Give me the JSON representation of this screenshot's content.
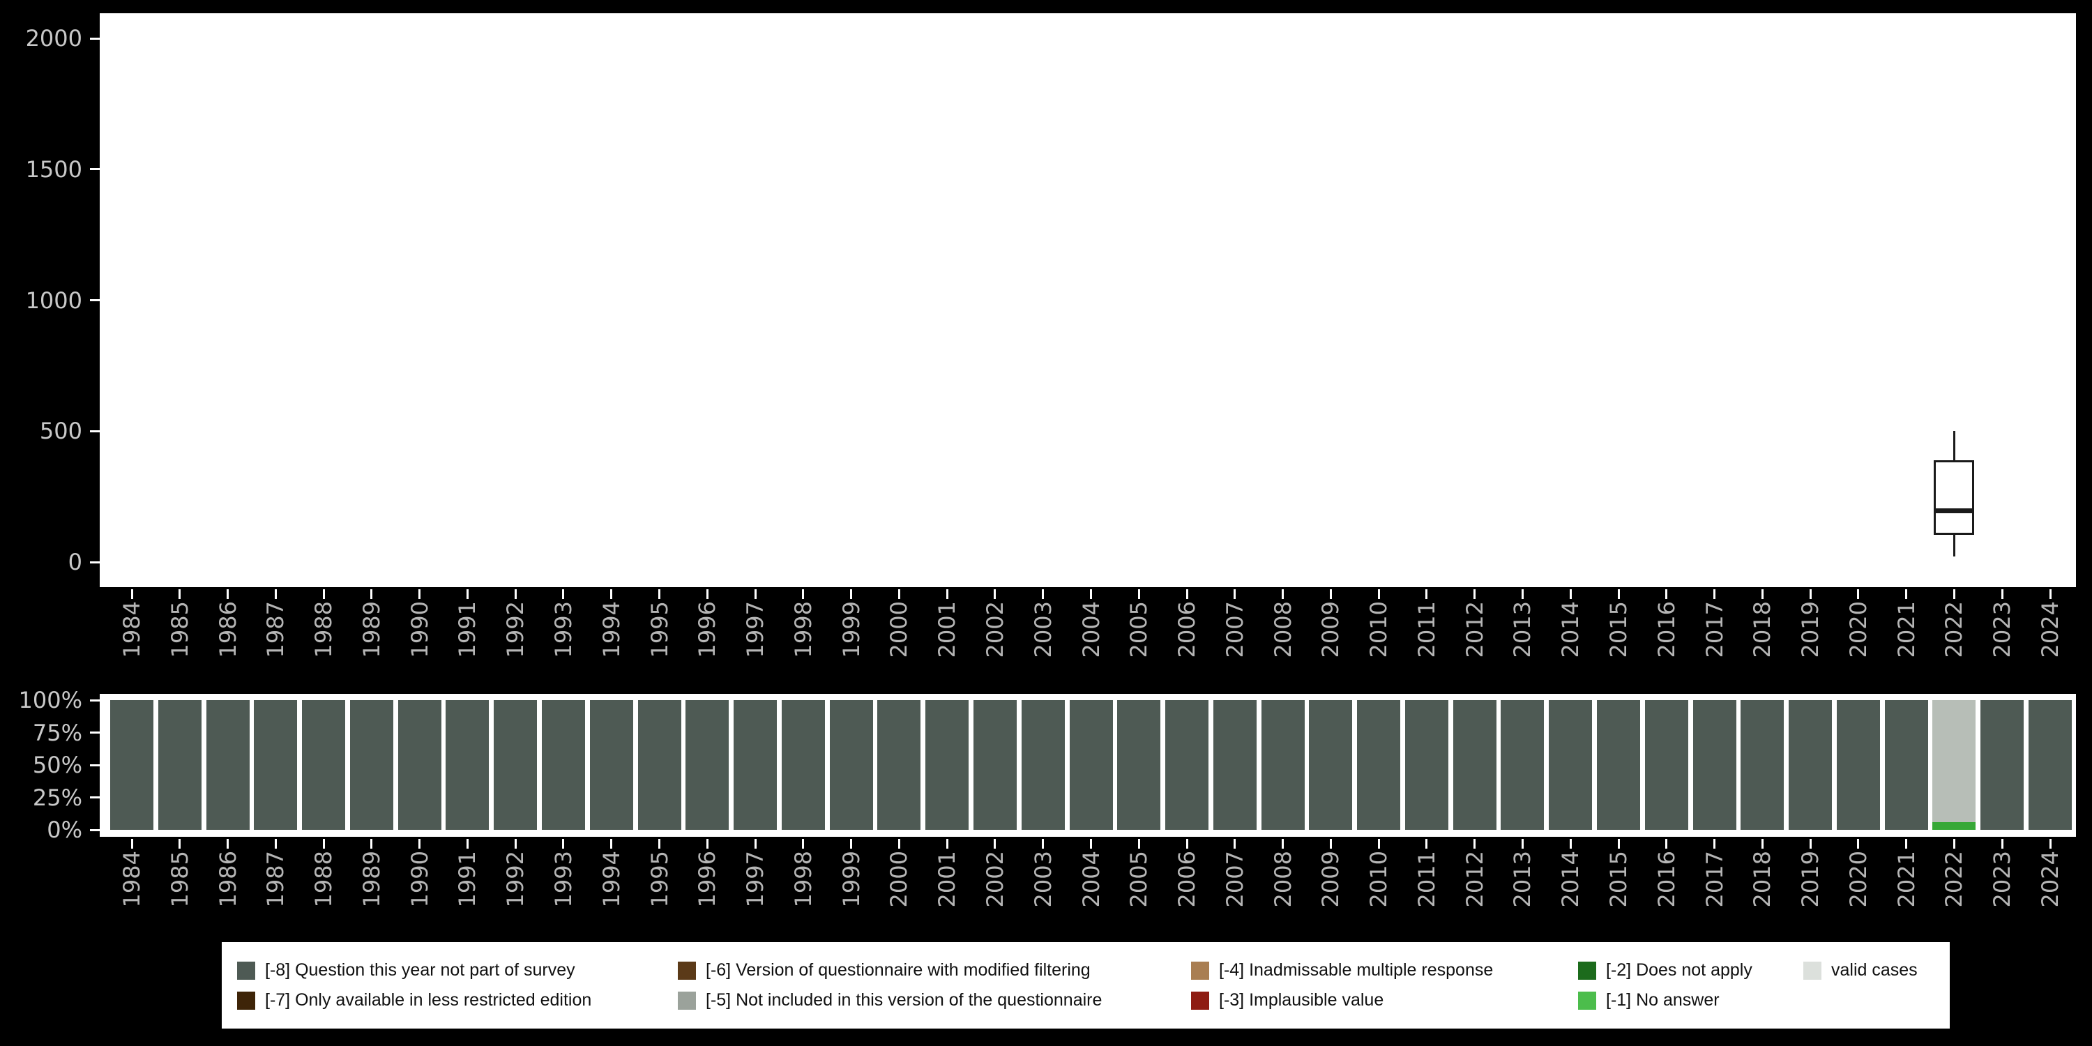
{
  "colors": {
    "background": "#000000",
    "panel": "#ffffff",
    "tick": "#ffffff",
    "y_axis_text": "#c8c8c8",
    "x_axis_text": "#b5b5b5",
    "legend_text": "#111111",
    "boxplot_stroke": "#1a1a1a"
  },
  "years": [
    "1984",
    "1985",
    "1986",
    "1987",
    "1988",
    "1989",
    "1990",
    "1991",
    "1992",
    "1993",
    "1994",
    "1995",
    "1996",
    "1997",
    "1998",
    "1999",
    "2000",
    "2001",
    "2002",
    "2003",
    "2004",
    "2005",
    "2006",
    "2007",
    "2008",
    "2009",
    "2010",
    "2011",
    "2012",
    "2013",
    "2014",
    "2015",
    "2016",
    "2017",
    "2018",
    "2019",
    "2020",
    "2021",
    "2022",
    "2023",
    "2024"
  ],
  "chart_data": [
    {
      "type": "boxplot",
      "panel": "top",
      "title": "",
      "xlabel": "",
      "ylabel": "",
      "ylim": [
        0,
        2000
      ],
      "y_ticks": [
        0,
        500,
        1000,
        1500,
        2000
      ],
      "x_categories_ref": "years",
      "boxes": [
        {
          "year": "2022",
          "min": 20,
          "q1": 105,
          "median": 195,
          "q3": 390,
          "max": 500
        }
      ]
    },
    {
      "type": "bar",
      "variant": "stacked-percent",
      "panel": "bottom",
      "y_ticks": [
        {
          "label": "100%",
          "value": 100
        },
        {
          "label": "75%",
          "value": 75
        },
        {
          "label": "50%",
          "value": 50
        },
        {
          "label": "25%",
          "value": 25
        },
        {
          "label": "0%",
          "value": 0
        }
      ],
      "x_categories_ref": "years",
      "default_segments_bottom_to_top": [
        {
          "label": "[-8] Question this year not part of survey",
          "pct": 100,
          "color": "#4e5a54"
        }
      ],
      "overrides": {
        "2022": [
          {
            "label": "[-1] No answer",
            "pct": 6,
            "color": "#37a837"
          },
          {
            "label": "valid cases",
            "pct": 94,
            "color": "#b7beb7"
          }
        ]
      }
    }
  ],
  "legend": {
    "rows": [
      [
        {
          "code": "-8",
          "label": "[-8] Question this year not part of survey",
          "color": "#4e5a54"
        },
        {
          "code": "-6",
          "label": "[-6] Version of questionnaire with modified filtering",
          "color": "#5b3a18"
        },
        {
          "code": "-4",
          "label": "[-4] Inadmissable multiple response",
          "color": "#a97e52"
        },
        {
          "code": "-2",
          "label": "[-2] Does not apply",
          "color": "#1c6b1c"
        },
        {
          "code": "valid",
          "label": "valid cases",
          "color": "#dce0dc"
        }
      ],
      [
        {
          "code": "-7",
          "label": "[-7] Only available in less restricted edition",
          "color": "#3e2408"
        },
        {
          "code": "-5",
          "label": "[-5] Not included in this version of the questionnaire",
          "color": "#9ba29b"
        },
        {
          "code": "-3",
          "label": "[-3] Implausible value",
          "color": "#8e1c12"
        },
        {
          "code": "-1",
          "label": "[-1] No answer",
          "color": "#4cbd4c"
        }
      ]
    ]
  }
}
